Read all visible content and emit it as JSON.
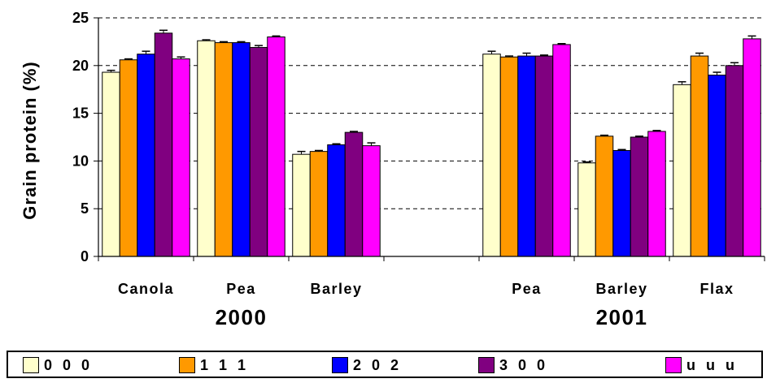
{
  "chart_data": {
    "type": "bar",
    "ylabel": "Grain protein (%)",
    "ylim": [
      0,
      25
    ],
    "yticks": [
      "0",
      "5",
      "10",
      "15",
      "20",
      "25"
    ],
    "grid": "horizontal dashed",
    "legend_placement": "bottom",
    "groups": [
      "2000",
      "2001"
    ],
    "categories": [
      {
        "label": "Canola",
        "group": 0
      },
      {
        "label": "Pea",
        "group": 0
      },
      {
        "label": "Barley",
        "group": 0
      },
      {
        "label": "",
        "group": null
      },
      {
        "label": "Pea",
        "group": 1
      },
      {
        "label": "Barley",
        "group": 1
      },
      {
        "label": "Flax",
        "group": 1
      }
    ],
    "series": [
      {
        "name": "0 0 0",
        "color": "#ffffcc",
        "values": [
          19.3,
          22.6,
          10.7,
          null,
          21.2,
          9.8,
          18.0
        ],
        "errors": [
          0.2,
          0.1,
          0.3,
          null,
          0.3,
          0.1,
          0.3
        ]
      },
      {
        "name": "1 1 1",
        "color": "#ff9900",
        "values": [
          20.6,
          22.4,
          11.0,
          null,
          20.9,
          12.6,
          21.0
        ],
        "errors": [
          0.1,
          0.1,
          0.1,
          null,
          0.1,
          0.1,
          0.3
        ]
      },
      {
        "name": "2 0 2",
        "color": "#0000ff",
        "values": [
          21.2,
          22.4,
          11.7,
          null,
          21.0,
          11.1,
          19.0
        ],
        "errors": [
          0.3,
          0.1,
          0.1,
          null,
          0.3,
          0.1,
          0.3
        ]
      },
      {
        "name": "3 0 0",
        "color": "#800080",
        "values": [
          23.4,
          21.9,
          13.0,
          null,
          21.0,
          12.5,
          20.0
        ],
        "errors": [
          0.3,
          0.2,
          0.1,
          null,
          0.1,
          0.1,
          0.3
        ]
      },
      {
        "name": "u u u",
        "color": "#ff00ff",
        "values": [
          20.7,
          23.0,
          11.6,
          null,
          22.2,
          13.1,
          22.8
        ],
        "errors": [
          0.2,
          0.1,
          0.3,
          null,
          0.1,
          0.1,
          0.3
        ]
      }
    ]
  }
}
